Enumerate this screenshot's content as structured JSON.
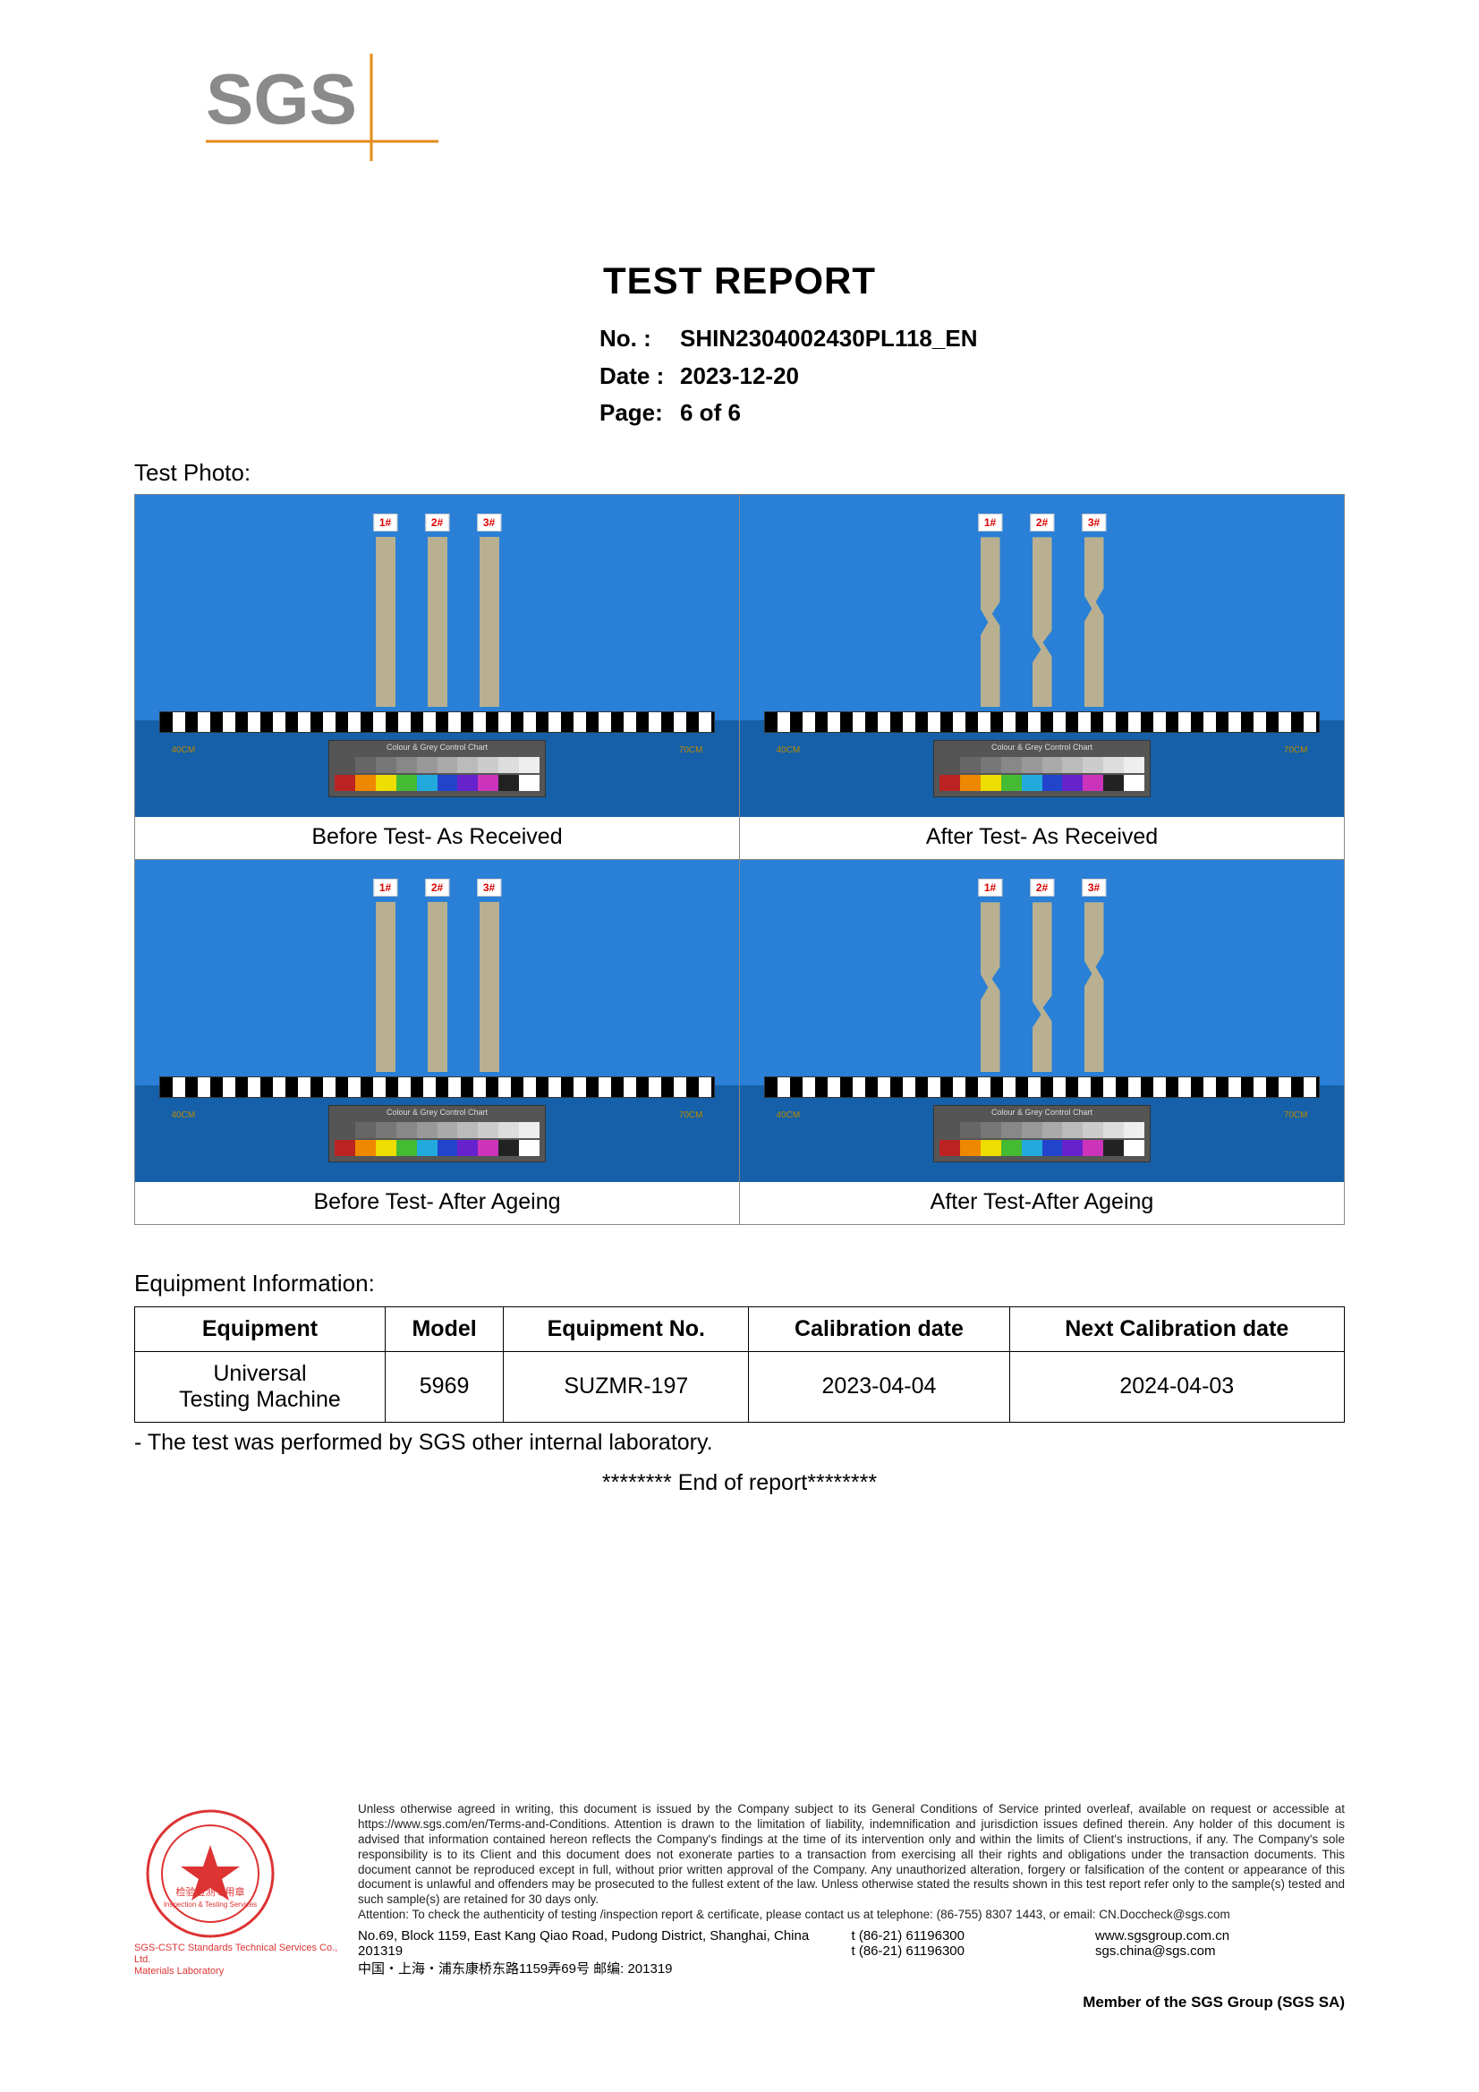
{
  "logo": {
    "text": "SGS",
    "color_dark": "#8a8a8a",
    "color_accent": "#e38a1a"
  },
  "report": {
    "title": "TEST REPORT",
    "no_label": "No.  :",
    "no": "SHIN2304002430PL118_EN",
    "date_label": "Date :",
    "date": "2023-12-20",
    "page_label": "Page:",
    "page": "6 of 6"
  },
  "photo_section_label": "Test Photo:",
  "photos": [
    {
      "caption": "Before Test- As Received",
      "tags": [
        "1#",
        "2#",
        "3#"
      ],
      "broken": false
    },
    {
      "caption": "After Test- As Received",
      "tags": [
        "1#",
        "2#",
        "3#"
      ],
      "broken": true
    },
    {
      "caption": "Before Test- After Ageing",
      "tags": [
        "1#",
        "2#",
        "3#"
      ],
      "broken": false
    },
    {
      "caption": "After Test-After Ageing",
      "tags": [
        "1#",
        "2#",
        "3#"
      ],
      "broken": true
    }
  ],
  "chart_colors_top": [
    "#555",
    "#666",
    "#777",
    "#888",
    "#999",
    "#aaa",
    "#bbb",
    "#ccc",
    "#ddd",
    "#eee"
  ],
  "chart_colors_bot": [
    "#b22",
    "#e80",
    "#ed0",
    "#4b3",
    "#2ad",
    "#24c",
    "#62c",
    "#c3b",
    "#222",
    "#fff"
  ],
  "ruler_labels": {
    "left": "40CM",
    "right": "70CM"
  },
  "equipment_title": "Equipment Information:",
  "equipment_table": {
    "columns": [
      "Equipment",
      "Model",
      "Equipment No.",
      "Calibration date",
      "Next Calibration date"
    ],
    "rows": [
      [
        "Universal Testing Machine",
        "5969",
        "SUZMR-197",
        "2023-04-04",
        "2024-04-03"
      ]
    ]
  },
  "note_line": "-      The test was performed by SGS other internal laboratory.",
  "end_line": "******** End of report********",
  "footer": {
    "fineprint": "Unless otherwise agreed in writing, this document is issued by the Company subject to its General Conditions of Service printed overleaf, available on request or accessible at https://www.sgs.com/en/Terms-and-Conditions. Attention is drawn to the limitation of liability, indemnification and jurisdiction issues defined therein. Any holder of this document is advised that information contained hereon reflects the Company's findings at the time of its intervention only and within the limits of Client's instructions, if any. The Company's sole responsibility is to its Client and this document does not exonerate parties to a transaction from exercising all their rights and obligations under the transaction documents. This document cannot be reproduced except in full, without prior written approval of the Company. Any unauthorized alteration, forgery or falsification of the content or appearance of this document is unlawful and offenders may be prosecuted to the fullest extent of the law. Unless otherwise stated the results shown in this test report refer only to the sample(s) tested and such sample(s) are retained for 30 days only.",
    "attention": "Attention: To check the authenticity of testing /inspection report & certificate, please contact us at telephone: (86-755) 8307 1443, or email: CN.Doccheck@sgs.com",
    "addr_en": "No.69, Block 1159, East Kang Qiao Road, Pudong District, Shanghai, China  201319",
    "addr_cn": "中国・上海・浦东康桥东路1159弄69号     邮编: 201319",
    "tel1": "t (86-21) 61196300",
    "tel2": "t (86-21) 61196300",
    "web1": "www.sgsgroup.com.cn",
    "web2": "sgs.china@sgs.com",
    "member": "Member of the SGS Group (SGS SA)",
    "stamp_line1": "SGS-CSTC Standards Technical Services Co., Ltd.",
    "stamp_line2": "Materials Laboratory",
    "stamp_inner1": "检验检测专用章",
    "stamp_inner2": "Inspection & Testing Services"
  }
}
